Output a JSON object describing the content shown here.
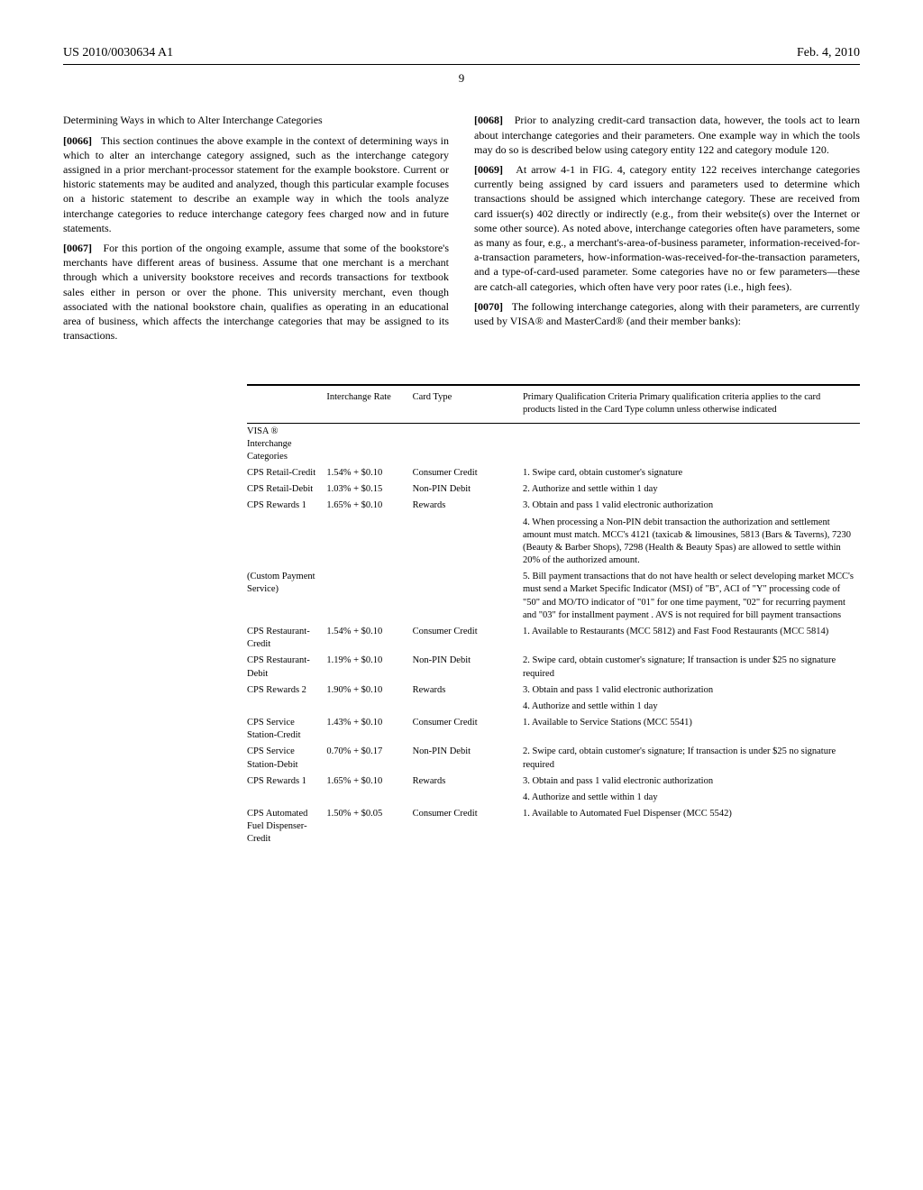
{
  "header": {
    "pub_no": "US 2010/0030634 A1",
    "pub_date": "Feb. 4, 2010",
    "page_number": "9"
  },
  "left_col": {
    "section_heading": "Determining Ways in which to Alter Interchange Categories",
    "p66_num": "[0066]",
    "p66_text": "This section continues the above example in the context of determining ways in which to alter an interchange category assigned, such as the interchange category assigned in a prior merchant-processor statement for the example bookstore. Current or historic statements may be audited and analyzed, though this particular example focuses on a historic statement to describe an example way in which the tools analyze interchange categories to reduce interchange category fees charged now and in future statements.",
    "p67_num": "[0067]",
    "p67_text": "For this portion of the ongoing example, assume that some of the bookstore's merchants have different areas of business. Assume that one merchant is a merchant through which a university bookstore receives and records transactions for textbook sales either in person or over the phone. This university merchant, even though associated with the national bookstore chain, qualifies as operating in an educational area of business, which affects the interchange categories that may be assigned to its transactions."
  },
  "right_col": {
    "p68_num": "[0068]",
    "p68_text": "Prior to analyzing credit-card transaction data, however, the tools act to learn about interchange categories and their parameters. One example way in which the tools may do so is described below using category entity 122 and category module 120.",
    "p69_num": "[0069]",
    "p69_text": "At arrow 4-1 in FIG. 4, category entity 122 receives interchange categories currently being assigned by card issuers and parameters used to determine which transactions should be assigned which interchange category. These are received from card issuer(s) 402 directly or indirectly (e.g., from their website(s) over the Internet or some other source). As noted above, interchange categories often have parameters, some as many as four, e.g., a merchant's-area-of-business parameter, information-received-for-a-transaction parameters, how-information-was-received-for-the-transaction parameters, and a type-of-card-used parameter. Some categories have no or few parameters—these are catch-all categories, which often have very poor rates (i.e., high fees).",
    "p70_num": "[0070]",
    "p70_text": "The following interchange categories, along with their parameters, are currently used by VISA® and MasterCard® (and their member banks):"
  },
  "table": {
    "headers": {
      "col1": "",
      "col2": "Interchange Rate",
      "col3": "Card Type",
      "col4": "Primary Qualification Criteria\nPrimary qualification criteria applies to the card products listed in the Card Type column unless otherwise indicated"
    },
    "group_header": "VISA ®\nInterchange\nCategories",
    "rows": [
      {
        "cat": "CPS Retail-Credit",
        "rate": "1.54% + $0.10",
        "ct": "Consumer Credit",
        "crit": "1. Swipe card, obtain customer's signature"
      },
      {
        "cat": "CPS Retail-Debit",
        "rate": "1.03% + $0.15",
        "ct": "Non-PIN Debit",
        "crit": "2. Authorize and settle within 1 day"
      },
      {
        "cat": "CPS Rewards 1",
        "rate": "1.65% + $0.10",
        "ct": "Rewards",
        "crit": "3. Obtain and pass 1 valid electronic authorization"
      },
      {
        "cat": "",
        "rate": "",
        "ct": "",
        "crit": "4. When processing a Non-PIN debit transaction the authorization and settlement amount must match. MCC's 4121 (taxicab & limousines, 5813 (Bars & Taverns), 7230 (Beauty & Barber Shops), 7298 (Health & Beauty Spas) are allowed to settle within 20% of the authorized amount."
      },
      {
        "cat": "(Custom Payment Service)",
        "rate": "",
        "ct": "",
        "crit": "5. Bill payment transactions that do not have health or select developing market MCC's must send a Market Specific Indicator (MSI) of \"B\", ACI of \"Y\" processing code of \"50\" and MO/TO indicator of \"01\" for one time payment, \"02\" for recurring payment and \"03\" for installment payment . AVS is not required for bill payment transactions"
      },
      {
        "cat": "CPS Restaurant-Credit",
        "rate": "1.54% + $0.10",
        "ct": "Consumer Credit",
        "crit": "1. Available to Restaurants (MCC 5812) and Fast Food Restaurants (MCC 5814)"
      },
      {
        "cat": "CPS Restaurant-Debit",
        "rate": "1.19% + $0.10",
        "ct": "Non-PIN Debit",
        "crit": "2. Swipe card, obtain customer's signature; If transaction is under $25 no signature required"
      },
      {
        "cat": "CPS Rewards 2",
        "rate": "1.90% + $0.10",
        "ct": "Rewards",
        "crit": "3. Obtain and pass 1 valid electronic authorization"
      },
      {
        "cat": "",
        "rate": "",
        "ct": "",
        "crit": "4. Authorize and settle within 1 day"
      },
      {
        "cat": "CPS Service Station-Credit",
        "rate": "1.43% + $0.10",
        "ct": "Consumer Credit",
        "crit": "1. Available to Service Stations (MCC 5541)"
      },
      {
        "cat": "CPS Service Station-Debit",
        "rate": "0.70% + $0.17",
        "ct": "Non-PIN Debit",
        "crit": "2. Swipe card, obtain customer's signature; If transaction is under $25 no signature required"
      },
      {
        "cat": "CPS Rewards 1",
        "rate": "1.65% + $0.10",
        "ct": "Rewards",
        "crit": "3. Obtain and pass 1 valid electronic authorization"
      },
      {
        "cat": "",
        "rate": "",
        "ct": "",
        "crit": "4. Authorize and settle within 1 day"
      },
      {
        "cat": "CPS Automated Fuel Dispenser-Credit",
        "rate": "1.50% + $0.05",
        "ct": "Consumer Credit",
        "crit": "1. Available to Automated Fuel Dispenser (MCC 5542)"
      }
    ]
  }
}
